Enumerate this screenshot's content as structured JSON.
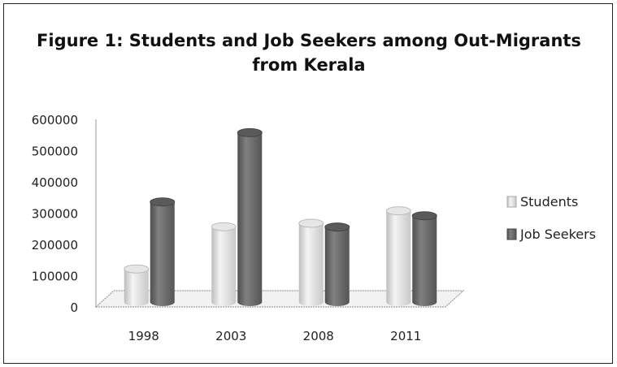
{
  "chart_data": {
    "type": "bar",
    "title_line1": "Figure 1: Students and Job Seekers among Out-Migrants",
    "title_line2": "from Kerala",
    "categories": [
      "1998",
      "2003",
      "2008",
      "2011"
    ],
    "series": [
      {
        "name": "Students",
        "values": [
          106000,
          241000,
          252000,
          292000
        ],
        "color": "#dcdcdc"
      },
      {
        "name": "Job Seekers",
        "values": [
          320000,
          542000,
          240000,
          276000
        ],
        "color": "#6f6f6f"
      }
    ],
    "ylim": [
      0,
      600000
    ],
    "yticks": [
      "0",
      "100000",
      "200000",
      "300000",
      "400000",
      "500000",
      "600000"
    ],
    "grid": false,
    "legend_position": "right"
  }
}
